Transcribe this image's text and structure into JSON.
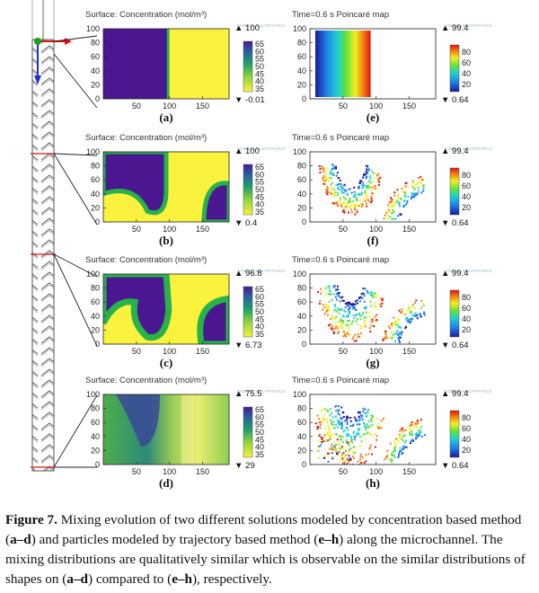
{
  "panels": [
    {
      "id": "a",
      "label": "(a)",
      "kind": "concentration",
      "title": "Surface: Concentration (mol/m³)",
      "max": "▲ 100",
      "min": "▼ -0.01",
      "mix": 0.0
    },
    {
      "id": "b",
      "label": "(b)",
      "kind": "concentration",
      "title": "Surface: Concentration (mol/m³)",
      "max": "▲ 100",
      "min": "▼ 0.4",
      "mix": 0.33
    },
    {
      "id": "c",
      "label": "(c)",
      "kind": "concentration",
      "title": "Surface: Concentration (mol/m³)",
      "max": "▲ 96.8",
      "min": "▼ 6.73",
      "mix": 0.66
    },
    {
      "id": "d",
      "label": "(d)",
      "kind": "concentration",
      "title": "Surface: Concentration (mol/m³)",
      "max": "▲ 75.5",
      "min": "▼ 29",
      "mix": 1.0
    },
    {
      "id": "e",
      "label": "(e)",
      "kind": "poincare",
      "title": "Time=0.6 s  Poincaré map",
      "max": "▲ 99.4",
      "min": "▼ 0.64",
      "mix": 0.0
    },
    {
      "id": "f",
      "label": "(f)",
      "kind": "poincare",
      "title": "Time=0.6 s  Poincaré map",
      "max": "▲ 99.4",
      "min": "▼ 0.64",
      "mix": 0.33
    },
    {
      "id": "g",
      "label": "(g)",
      "kind": "poincare",
      "title": "Time=0.6 s  Poincaré map",
      "max": "▲ 99.4",
      "min": "▼ 0.64",
      "mix": 0.66
    },
    {
      "id": "h",
      "label": "(h)",
      "kind": "poincare",
      "title": "Time=0.6 s  Poincaré map",
      "max": "▲ 99.4",
      "min": "▼ 0.64",
      "mix": 1.0
    }
  ],
  "axes": {
    "y_ticks": [
      "100",
      "80",
      "60",
      "40",
      "20",
      "0"
    ],
    "x_ticks": [
      "50",
      "100",
      "150"
    ]
  },
  "colorbars": {
    "concentration_ticks": [
      "65",
      "60",
      "55",
      "50",
      "45",
      "40",
      "35"
    ],
    "poincare_ticks": [
      "80",
      "60",
      "40",
      "20"
    ]
  },
  "logo_text": "COMSOL MULTIPHYSICS",
  "colors": {
    "purple": "#4a1790",
    "yellow": "#fbf23e",
    "green": "#27b34a",
    "channel_red": "#e01010",
    "arrow_blue": "#1e2fd0",
    "dot_green": "#1aa01a"
  },
  "caption": {
    "fig_label": "Figure 7.",
    "s1": " Mixing evolution of two different solutions modeled by concentration based method (",
    "a_d_1": "a–d",
    "s2": ") and particles modeled by trajectory based method (",
    "e_h_1": "e–h",
    "s3": ") along the microchannel. The mixing distributions are qualitatively similar which is observable on the similar distributions of shapes on (",
    "a_d_2": "a–d",
    "s4": ") compared to (",
    "e_h_2": "e–h",
    "s5": "), respectively."
  }
}
